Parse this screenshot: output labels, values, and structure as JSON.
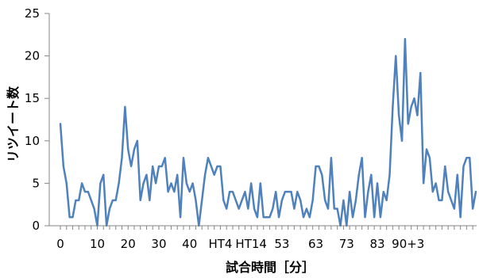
{
  "chart_data": {
    "type": "line",
    "xlabel": "試合時間［分］",
    "ylabel": "リツイート数",
    "ylim": [
      0,
      25
    ],
    "yticks": [
      0,
      5,
      10,
      15,
      20,
      25
    ],
    "grid": false,
    "legend": "none",
    "line_color": "#4F81BD",
    "x_tick_labels": [
      {
        "index": 0,
        "label": "0"
      },
      {
        "index": 12,
        "label": "10"
      },
      {
        "index": 22,
        "label": "20"
      },
      {
        "index": 32,
        "label": "30"
      },
      {
        "index": 42,
        "label": "40"
      },
      {
        "index": 52,
        "label": "HT4"
      },
      {
        "index": 62,
        "label": "HT14"
      },
      {
        "index": 72,
        "label": "53"
      },
      {
        "index": 83,
        "label": "63"
      },
      {
        "index": 93,
        "label": "73"
      },
      {
        "index": 103,
        "label": "83"
      },
      {
        "index": 113,
        "label": "90+3"
      }
    ],
    "series": [
      {
        "values": [
          12,
          7,
          5,
          1,
          1,
          3,
          3,
          5,
          4,
          4,
          3,
          2,
          0,
          5,
          6,
          0,
          2,
          3,
          3,
          5,
          8,
          14,
          9,
          7,
          9,
          10,
          3,
          5,
          6,
          3,
          7,
          5,
          7,
          7,
          8,
          4,
          5,
          4,
          6,
          1,
          8,
          5,
          4,
          5,
          3,
          0,
          3,
          6,
          8,
          7,
          6,
          7,
          7,
          3,
          2,
          4,
          4,
          3,
          2,
          3,
          4,
          2,
          5,
          2,
          1,
          5,
          1,
          1,
          1,
          2,
          4,
          1,
          3,
          4,
          4,
          4,
          2,
          4,
          3,
          1,
          2,
          1,
          3,
          7,
          7,
          6,
          3,
          2,
          8,
          2,
          2,
          0,
          3,
          0,
          4,
          1,
          3,
          6,
          8,
          1,
          4,
          6,
          1,
          5,
          1,
          4,
          3,
          6,
          14,
          20,
          13,
          10,
          22,
          12,
          14,
          15,
          13,
          18,
          5,
          9,
          8,
          4,
          5,
          3,
          3,
          7,
          4,
          3,
          2,
          6,
          1,
          7,
          8,
          8,
          2,
          4
        ]
      }
    ]
  }
}
